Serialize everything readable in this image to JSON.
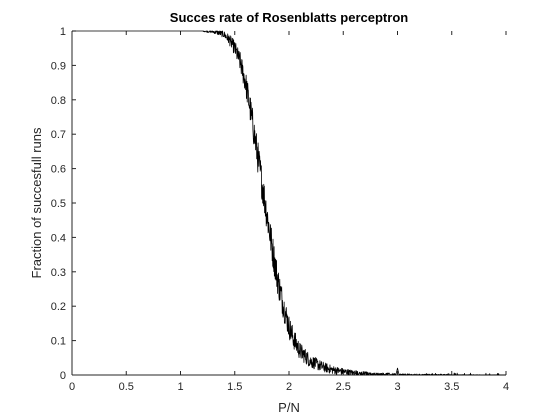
{
  "chart_data": {
    "type": "line",
    "title": "Succes rate of Rosenblatts perceptron",
    "xlabel": "P/N",
    "ylabel": "Fraction of succesfull runs",
    "xlim": [
      0,
      4
    ],
    "ylim": [
      0,
      1
    ],
    "xticks": [
      "0",
      "0.5",
      "1",
      "1.5",
      "2",
      "2.5",
      "3",
      "3.5",
      "4"
    ],
    "yticks": [
      "0",
      "0.1",
      "0.2",
      "0.3",
      "0.4",
      "0.5",
      "0.6",
      "0.7",
      "0.8",
      "0.9",
      "1"
    ],
    "grid": false,
    "series": [
      {
        "color": "#000000",
        "x": [
          0,
          0.5,
          1.0,
          1.2,
          1.3,
          1.35,
          1.4,
          1.45,
          1.5,
          1.55,
          1.6,
          1.65,
          1.7,
          1.75,
          1.8,
          1.85,
          1.9,
          1.95,
          2.0,
          2.05,
          2.1,
          2.15,
          2.2,
          2.3,
          2.4,
          2.5,
          2.6,
          2.7,
          2.8,
          2.9,
          3.0,
          3.2,
          3.5,
          4.0
        ],
        "y": [
          1.0,
          1.0,
          1.0,
          1.0,
          0.998,
          0.995,
          0.99,
          0.975,
          0.95,
          0.91,
          0.85,
          0.76,
          0.66,
          0.56,
          0.46,
          0.36,
          0.27,
          0.2,
          0.14,
          0.1,
          0.07,
          0.055,
          0.04,
          0.025,
          0.015,
          0.01,
          0.006,
          0.004,
          0.002,
          0.002,
          0.001,
          0.0005,
          0.0002,
          0.0
        ]
      }
    ]
  }
}
